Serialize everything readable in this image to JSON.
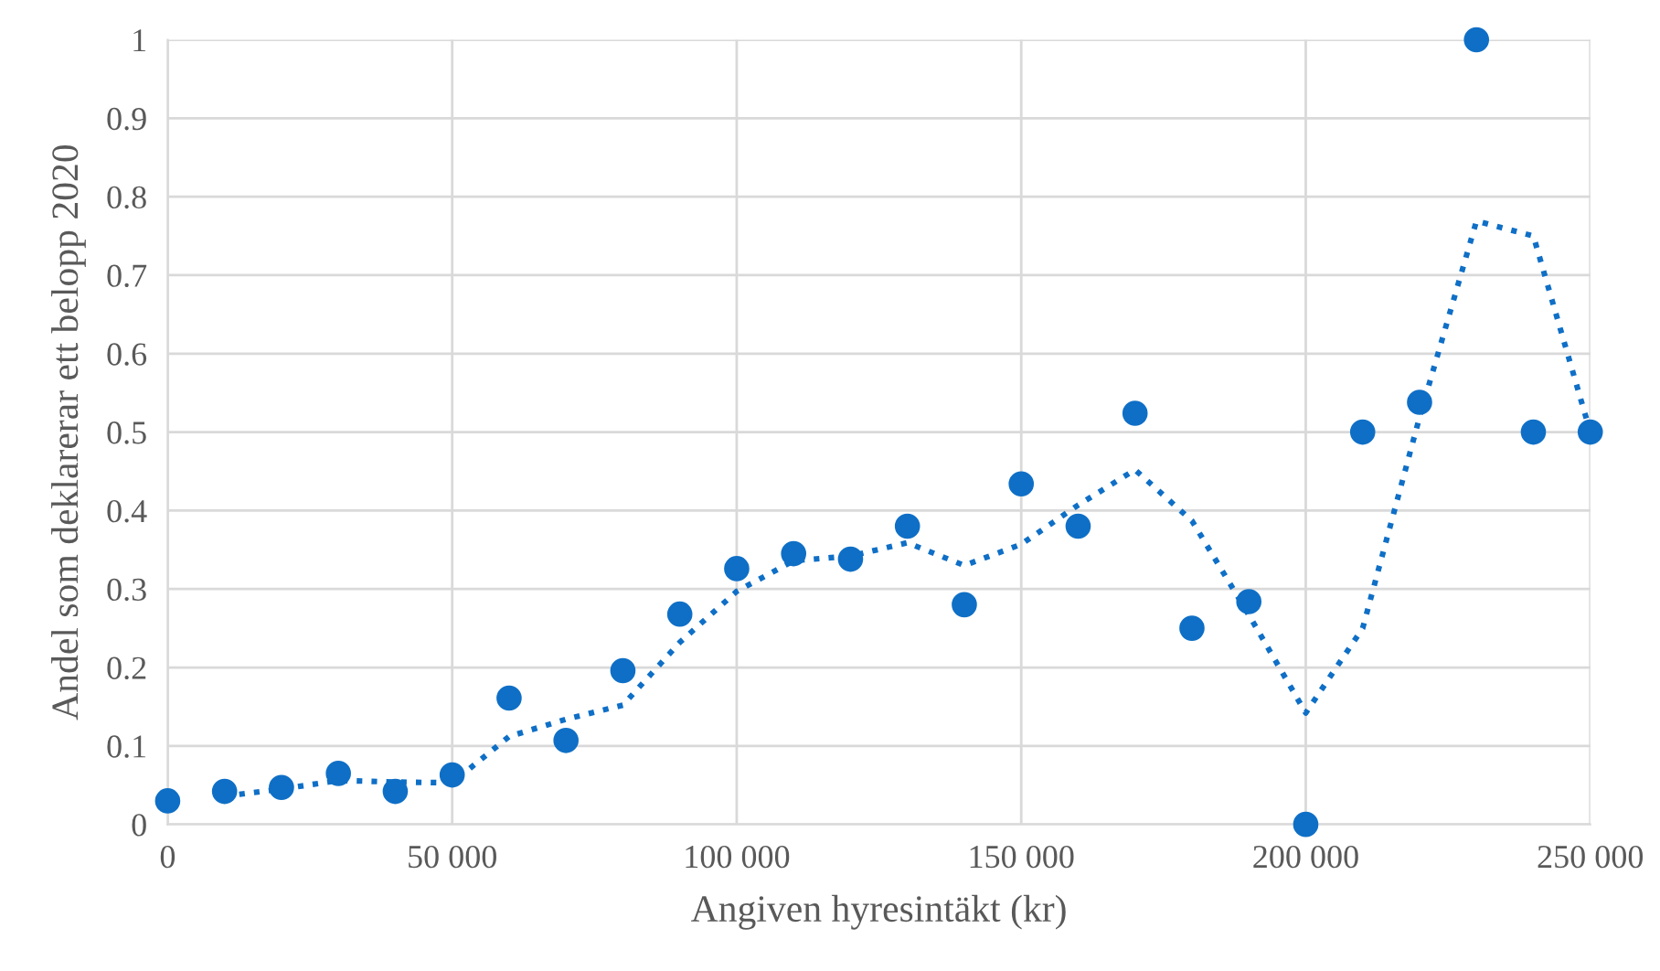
{
  "chart_data": {
    "type": "scatter",
    "xlabel": "Angiven hyresintäkt (kr)",
    "ylabel": "Andel som deklarerar ett belopp 2020",
    "x": [
      0,
      10000,
      20000,
      30000,
      40000,
      50000,
      60000,
      70000,
      80000,
      90000,
      100000,
      110000,
      120000,
      130000,
      140000,
      150000,
      160000,
      170000,
      180000,
      190000,
      200000,
      210000,
      220000,
      230000,
      240000,
      250000
    ],
    "series": [
      {
        "color": "#0f6fc6",
        "marker": "circle",
        "values": [
          0.03,
          0.042,
          0.047,
          0.065,
          0.042,
          0.063,
          0.161,
          0.107,
          0.196,
          0.268,
          0.326,
          0.345,
          0.338,
          0.38,
          0.28,
          0.434,
          0.38,
          0.524,
          0.25,
          0.284,
          0,
          0.5,
          0.538,
          1,
          0.5,
          0.5
        ]
      },
      {
        "type": "line",
        "color": "#0f6fc6",
        "line_style": "dotted",
        "marker": "none",
        "x": [
          10000,
          20000,
          30000,
          40000,
          50000,
          60000,
          70000,
          80000,
          90000,
          100000,
          110000,
          120000,
          130000,
          140000,
          150000,
          160000,
          170000,
          180000,
          190000,
          200000,
          210000,
          220000,
          230000,
          240000,
          250000
        ],
        "values": [
          0.036,
          0.045,
          0.056,
          0.054,
          0.053,
          0.112,
          0.134,
          0.152,
          0.232,
          0.297,
          0.336,
          0.342,
          0.359,
          0.33,
          0.357,
          0.407,
          0.452,
          0.387,
          0.267,
          0.142,
          0.25,
          0.519,
          0.769,
          0.75,
          0.5
        ]
      }
    ],
    "xlim": [
      0,
      250000
    ],
    "ylim": [
      0,
      1
    ],
    "xticks": [
      0,
      {
        "value": 50000,
        "label": "50 000"
      },
      {
        "value": 100000,
        "label": "100 000"
      },
      {
        "value": 150000,
        "label": "150 000"
      },
      {
        "value": 200000,
        "label": "200 000"
      },
      {
        "value": 250000,
        "label": "250 000"
      }
    ],
    "yticks": [
      0,
      0.1,
      0.2,
      0.3,
      0.4,
      0.5,
      0.6,
      0.7,
      0.8,
      0.9,
      1
    ],
    "grid": true,
    "legend": false
  }
}
